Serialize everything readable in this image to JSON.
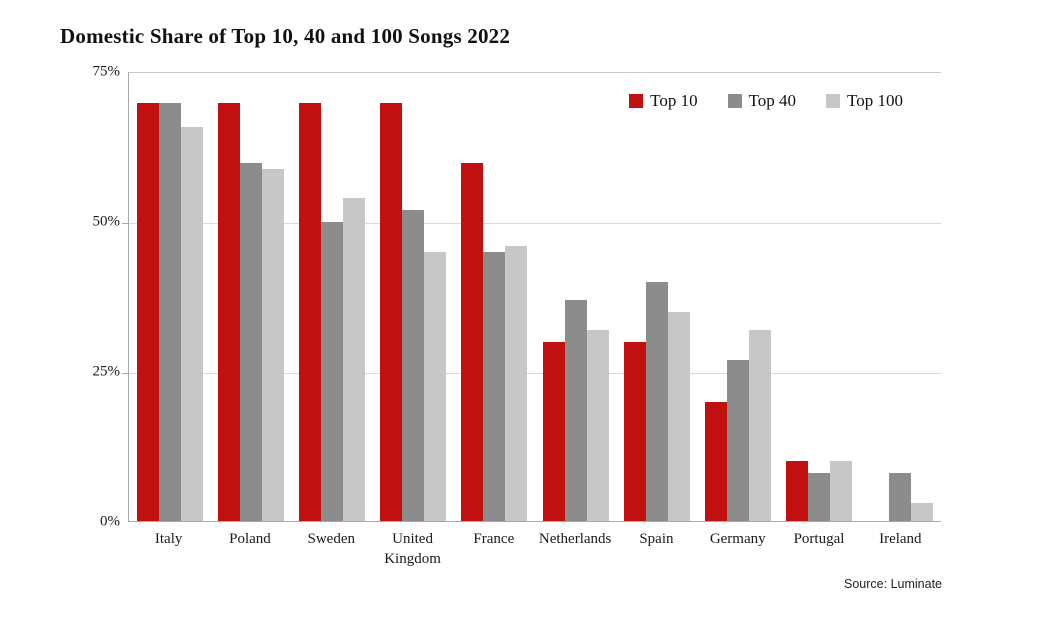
{
  "chart_data": {
    "type": "bar",
    "title": "Domestic Share of Top 10, 40 and 100 Songs 2022",
    "source": "Source: Luminate",
    "categories": [
      "Italy",
      "Poland",
      "Sweden",
      "United Kingdom",
      "France",
      "Netherlands",
      "Spain",
      "Germany",
      "Portugal",
      "Ireland"
    ],
    "series": [
      {
        "name": "Top 10",
        "color": "#c01010",
        "values": [
          70,
          70,
          70,
          70,
          60,
          30,
          30,
          20,
          10,
          0
        ]
      },
      {
        "name": "Top 40",
        "color": "#8c8c8c",
        "values": [
          70,
          60,
          50,
          52,
          45,
          37,
          40,
          27,
          8,
          8
        ]
      },
      {
        "name": "Top 100",
        "color": "#c7c7c7",
        "values": [
          66,
          59,
          54,
          45,
          46,
          32,
          35,
          32,
          10,
          3
        ]
      }
    ],
    "xlabel": "",
    "ylabel": "",
    "ylim": [
      0,
      75
    ],
    "yticks": [
      0,
      25,
      50,
      75
    ],
    "ytick_labels": [
      "0%",
      "25%",
      "50%",
      "75%"
    ],
    "grid": true,
    "legend_position": "top-right"
  },
  "colors": {
    "gridline": "#d9d9d9",
    "axis": "#a9a9a9",
    "background": "#ffffff",
    "text": "#1a1a1a"
  }
}
